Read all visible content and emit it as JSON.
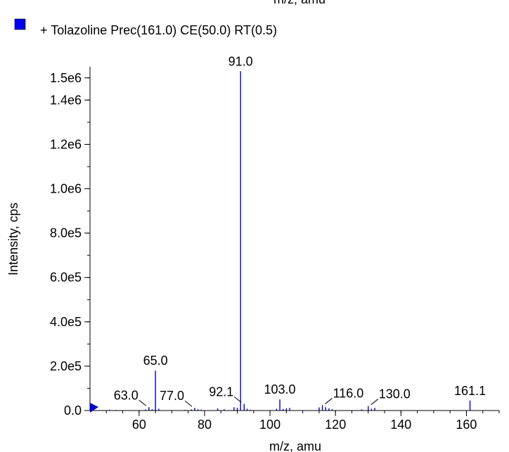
{
  "chart_data": {
    "type": "bar",
    "top_cut_text": "m/z, amu",
    "legend": {
      "label": "+ Tolazoline Prec(161.0) CE(50.0) RT(0.5)",
      "color": "#0000ee",
      "placement": "top-left"
    },
    "xlabel": "m/z, amu",
    "ylabel": "Intensity, cps",
    "xlim": [
      45,
      170
    ],
    "ylim": [
      0,
      1550000
    ],
    "x_ticks": [
      60,
      80,
      100,
      120,
      140,
      160
    ],
    "y_ticks": [
      {
        "value": 0,
        "label": "0.0"
      },
      {
        "value": 200000,
        "label": "2.0e5"
      },
      {
        "value": 400000,
        "label": "4.0e5"
      },
      {
        "value": 600000,
        "label": "6.0e5"
      },
      {
        "value": 800000,
        "label": "8.0e5"
      },
      {
        "value": 1000000,
        "label": "1.0e6"
      },
      {
        "value": 1200000,
        "label": "1.2e6"
      },
      {
        "value": 1400000,
        "label": "1.4e6"
      },
      {
        "value": 1500000,
        "label": "1.5e6"
      }
    ],
    "bar_color": "#0000cc",
    "peaks": [
      {
        "x": 51.0,
        "y": 4000
      },
      {
        "x": 53.0,
        "y": 3000
      },
      {
        "x": 62.0,
        "y": 5000
      },
      {
        "x": 63.0,
        "y": 15000
      },
      {
        "x": 64.0,
        "y": 6000
      },
      {
        "x": 65.0,
        "y": 180000
      },
      {
        "x": 66.0,
        "y": 8000
      },
      {
        "x": 74.0,
        "y": 3000
      },
      {
        "x": 76.0,
        "y": 5000
      },
      {
        "x": 77.0,
        "y": 12000
      },
      {
        "x": 78.0,
        "y": 6000
      },
      {
        "x": 79.0,
        "y": 4000
      },
      {
        "x": 84.0,
        "y": 10000
      },
      {
        "x": 86.0,
        "y": 6000
      },
      {
        "x": 89.0,
        "y": 15000
      },
      {
        "x": 90.0,
        "y": 12000
      },
      {
        "x": 91.0,
        "y": 1530000
      },
      {
        "x": 92.1,
        "y": 30000
      },
      {
        "x": 93.0,
        "y": 8000
      },
      {
        "x": 94.0,
        "y": 4000
      },
      {
        "x": 102.0,
        "y": 8000
      },
      {
        "x": 103.0,
        "y": 50000
      },
      {
        "x": 104.0,
        "y": 7000
      },
      {
        "x": 105.0,
        "y": 10000
      },
      {
        "x": 106.0,
        "y": 12000
      },
      {
        "x": 115.0,
        "y": 14000
      },
      {
        "x": 116.0,
        "y": 24000
      },
      {
        "x": 117.0,
        "y": 15000
      },
      {
        "x": 118.0,
        "y": 10000
      },
      {
        "x": 119.0,
        "y": 6000
      },
      {
        "x": 128.0,
        "y": 5000
      },
      {
        "x": 130.0,
        "y": 20000
      },
      {
        "x": 131.0,
        "y": 8000
      },
      {
        "x": 132.0,
        "y": 12000
      },
      {
        "x": 161.1,
        "y": 45000
      }
    ],
    "annotations": [
      {
        "text": "91.0",
        "x": 91.0,
        "y": 1530000,
        "leader": false
      },
      {
        "text": "65.0",
        "x": 65.0,
        "y": 180000,
        "leader": false
      },
      {
        "text": "63.0",
        "x": 63.0,
        "y": 15000,
        "leader": true,
        "side": "left"
      },
      {
        "text": "77.0",
        "x": 77.0,
        "y": 12000,
        "leader": true,
        "side": "left"
      },
      {
        "text": "92.1",
        "x": 92.1,
        "y": 30000,
        "leader": true,
        "side": "left"
      },
      {
        "text": "103.0",
        "x": 103.0,
        "y": 50000,
        "leader": false
      },
      {
        "text": "116.0",
        "x": 116.0,
        "y": 24000,
        "leader": true,
        "side": "right"
      },
      {
        "text": "130.0",
        "x": 130.0,
        "y": 20000,
        "leader": true,
        "side": "right"
      },
      {
        "text": "161.1",
        "x": 161.1,
        "y": 45000,
        "leader": false
      }
    ]
  }
}
